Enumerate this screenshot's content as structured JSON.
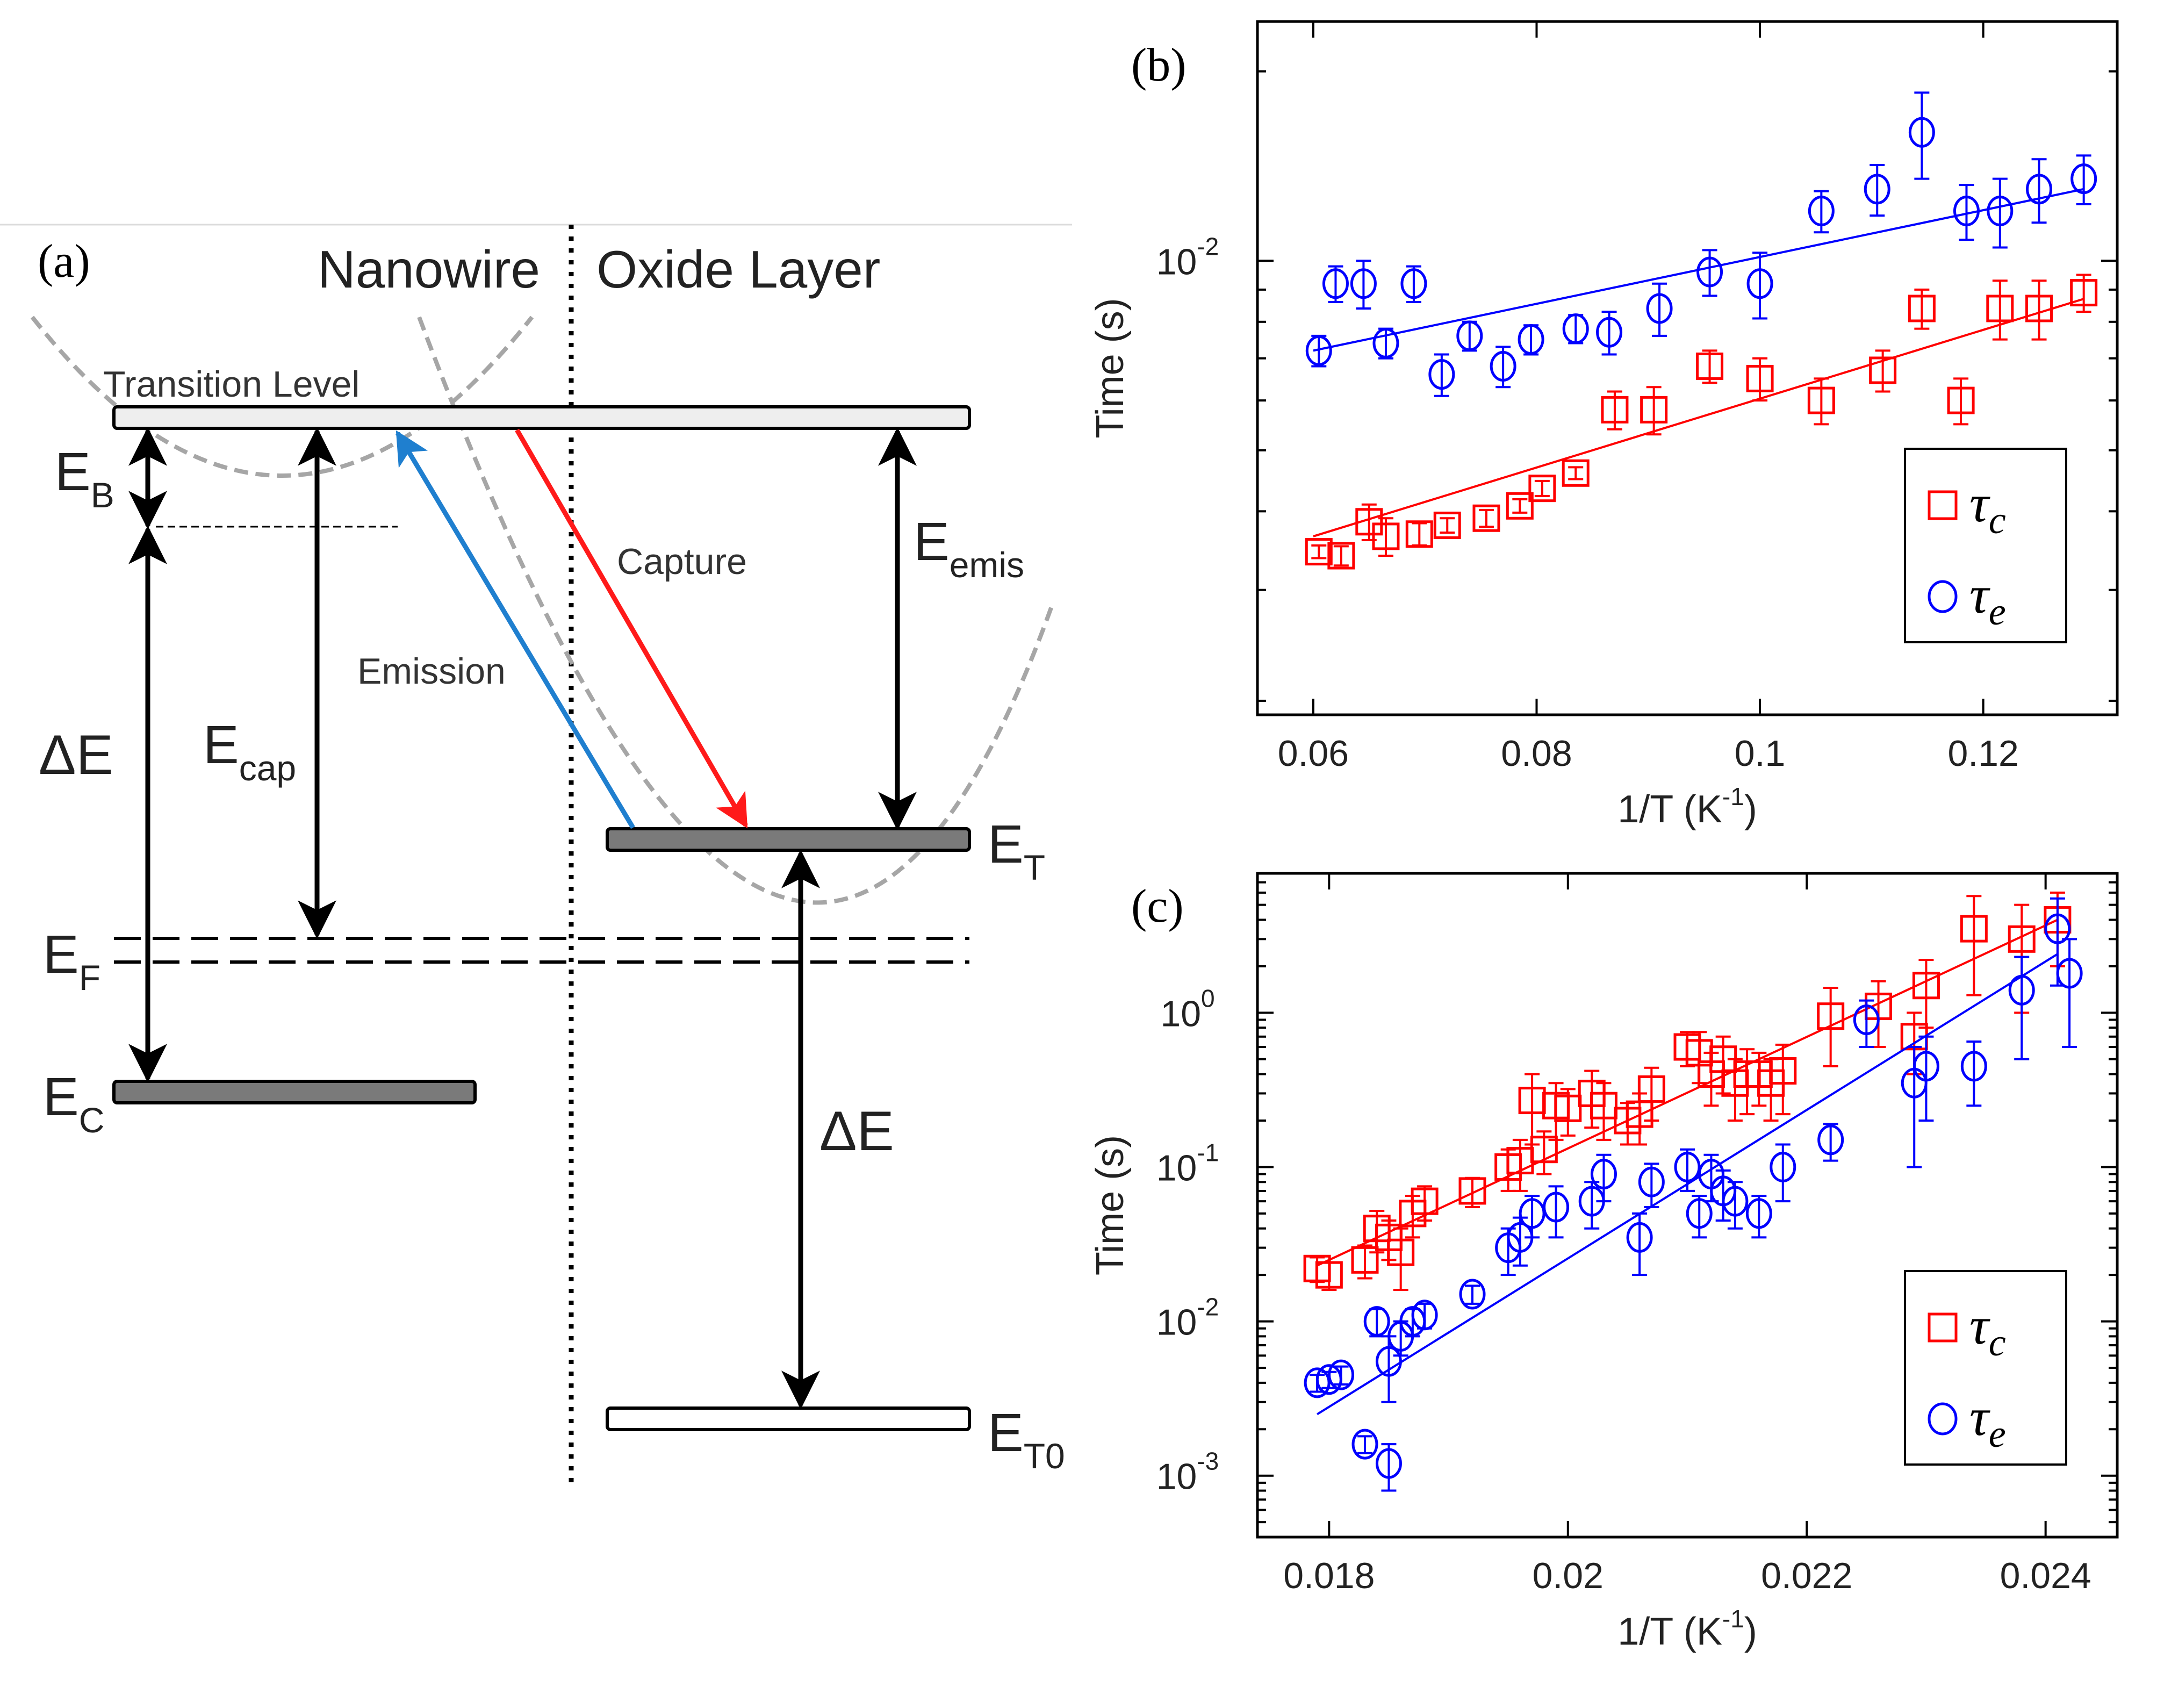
{
  "panel_a": {
    "label": "(a)",
    "region_left": "Nanowire",
    "region_right": "Oxide Layer",
    "transition_level": "Transition Level",
    "eb": {
      "main": "E",
      "sub": "B"
    },
    "delta_e": "ΔE",
    "ecap": {
      "main": "E",
      "sub": "cap"
    },
    "emission": "Emission",
    "capture": "Capture",
    "eemis": {
      "main": "E",
      "sub": "emis"
    },
    "et": {
      "main": "E",
      "sub": "T"
    },
    "ef": {
      "main": "E",
      "sub": "F"
    },
    "ec": {
      "main": "E",
      "sub": "C"
    },
    "delta_e_oxide": "ΔE",
    "et0": {
      "main": "E",
      "sub": "T0"
    },
    "colors": {
      "capture": "#ff1a1a",
      "emission": "#1f7fcf",
      "parabola": "#a0a0a0",
      "filled_level": "#7a7a7a",
      "light_level": "#eeeeee"
    }
  },
  "chart_data": [
    {
      "panel": "(b)",
      "type": "scatter",
      "xlabel": "1/T (K-1)",
      "ylabel": "Time (s)",
      "yscale": "log",
      "xlim": [
        0.055,
        0.132
      ],
      "ylim": [
        0.0019,
        0.024
      ],
      "xticks": [
        0.06,
        0.08,
        0.1,
        0.12
      ],
      "xtick_labels": [
        "0.06",
        "0.08",
        "0.1",
        "0.12"
      ],
      "ytick_labels": [
        {
          "value": 0.01,
          "base": "10",
          "exp": "-2"
        }
      ],
      "legend": "bottom-right",
      "series": [
        {
          "name": "τc",
          "marker": "square",
          "color": "#ff0000",
          "x": [
            0.0605,
            0.0625,
            0.065,
            0.0665,
            0.0695,
            0.072,
            0.0755,
            0.0785,
            0.0805,
            0.0835,
            0.087,
            0.0905,
            0.0955,
            0.1,
            0.1055,
            0.111,
            0.1145,
            0.118,
            0.1215,
            0.125,
            0.129
          ],
          "y": [
            0.00345,
            0.0034,
            0.00385,
            0.00365,
            0.00368,
            0.0038,
            0.0039,
            0.00408,
            0.00435,
            0.0046,
            0.0058,
            0.0058,
            0.0068,
            0.0065,
            0.006,
            0.0067,
            0.0084,
            0.006,
            0.0084,
            0.0084,
            0.0089
          ],
          "yerr": [
            8e-05,
            0.00012,
            0.00025,
            0.00025,
            0.00015,
            0.0001,
            0.00012,
            0.0001,
            0.00012,
            0.0001,
            0.0004,
            0.0005,
            0.0004,
            0.0005,
            0.0005,
            0.0005,
            0.0006,
            0.0005,
            0.0009,
            0.0009,
            0.0006
          ],
          "fit": {
            "x": [
              0.06,
              0.129
            ],
            "y": [
              0.00365,
              0.0087
            ]
          }
        },
        {
          "name": "τe",
          "marker": "circle",
          "color": "#0000ff",
          "x": [
            0.0605,
            0.062,
            0.0645,
            0.0665,
            0.069,
            0.0715,
            0.074,
            0.077,
            0.0795,
            0.0835,
            0.0865,
            0.091,
            0.0955,
            0.1,
            0.1055,
            0.1105,
            0.1145,
            0.1185,
            0.1215,
            0.125,
            0.129
          ],
          "y": [
            0.0072,
            0.0092,
            0.0092,
            0.0074,
            0.0092,
            0.0066,
            0.0076,
            0.0068,
            0.0075,
            0.0078,
            0.0077,
            0.0084,
            0.0096,
            0.0092,
            0.012,
            0.013,
            0.016,
            0.012,
            0.012,
            0.013,
            0.0135
          ],
          "yerr": [
            0.0004,
            0.0006,
            0.0008,
            0.0004,
            0.0006,
            0.0005,
            0.0004,
            0.0005,
            0.0004,
            0.0004,
            0.0006,
            0.0008,
            0.0008,
            0.0011,
            0.0009,
            0.0012,
            0.0025,
            0.0012,
            0.0015,
            0.0015,
            0.0012
          ],
          "fit": {
            "x": [
              0.06,
              0.129
            ],
            "y": [
              0.0072,
              0.013
            ]
          }
        }
      ]
    },
    {
      "panel": "(c)",
      "type": "scatter",
      "xlabel": "1/T (K-1)",
      "ylabel": "Time (s)",
      "yscale": "log",
      "xlim": [
        0.0174,
        0.0246
      ],
      "ylim": [
        0.0004,
        8
      ],
      "xticks": [
        0.018,
        0.02,
        0.022,
        0.024
      ],
      "xtick_labels": [
        "0.018",
        "0.02",
        "0.022",
        "0.024"
      ],
      "ytick_labels": [
        {
          "value": 1,
          "base": "10",
          "exp": "0"
        },
        {
          "value": 0.1,
          "base": "10",
          "exp": "-1"
        },
        {
          "value": 0.01,
          "base": "10",
          "exp": "-2"
        },
        {
          "value": 0.001,
          "base": "10",
          "exp": "-3"
        }
      ],
      "legend": "bottom-right",
      "series": [
        {
          "name": "τc",
          "marker": "square",
          "color": "#ff0000",
          "x": [
            0.0179,
            0.018,
            0.0183,
            0.0184,
            0.0185,
            0.0186,
            0.0187,
            0.0188,
            0.0192,
            0.0195,
            0.0196,
            0.0197,
            0.0198,
            0.0199,
            0.02,
            0.0202,
            0.0203,
            0.0205,
            0.0206,
            0.0207,
            0.021,
            0.0211,
            0.0212,
            0.0213,
            0.0214,
            0.0215,
            0.0216,
            0.0217,
            0.0218,
            0.0222,
            0.0226,
            0.0229,
            0.023,
            0.0234,
            0.0238,
            0.0241
          ],
          "y": [
            0.022,
            0.02,
            0.025,
            0.04,
            0.035,
            0.028,
            0.05,
            0.06,
            0.07,
            0.1,
            0.11,
            0.27,
            0.13,
            0.25,
            0.24,
            0.3,
            0.25,
            0.2,
            0.22,
            0.32,
            0.6,
            0.55,
            0.4,
            0.5,
            0.35,
            0.4,
            0.4,
            0.35,
            0.42,
            0.95,
            1.1,
            0.7,
            1.5,
            3.5,
            3,
            4
          ],
          "yerr": [
            0.004,
            0.004,
            0.006,
            0.012,
            0.01,
            0.012,
            0.015,
            0.015,
            0.015,
            0.03,
            0.04,
            0.13,
            0.04,
            0.1,
            0.08,
            0.12,
            0.1,
            0.06,
            0.08,
            0.12,
            0.15,
            0.2,
            0.15,
            0.2,
            0.15,
            0.18,
            0.15,
            0.15,
            0.2,
            0.5,
            0.5,
            0.3,
            0.7,
            2.2,
            2,
            2
          ],
          "fit": {
            "x": [
              0.0179,
              0.0241
            ],
            "y": [
              0.023,
              4
            ]
          }
        },
        {
          "name": "τe",
          "marker": "circle",
          "color": "#0000ff",
          "x": [
            0.0179,
            0.018,
            0.0181,
            0.0183,
            0.0184,
            0.0185,
            0.0185,
            0.0186,
            0.0187,
            0.0188,
            0.0192,
            0.0195,
            0.0196,
            0.0197,
            0.0199,
            0.0202,
            0.0203,
            0.0206,
            0.0207,
            0.021,
            0.0211,
            0.0212,
            0.0213,
            0.0214,
            0.0216,
            0.0218,
            0.0222,
            0.0225,
            0.0229,
            0.023,
            0.0234,
            0.0238,
            0.0241,
            0.0242
          ],
          "y": [
            0.004,
            0.0042,
            0.0045,
            0.0016,
            0.01,
            0.0012,
            0.0055,
            0.008,
            0.01,
            0.011,
            0.015,
            0.03,
            0.035,
            0.05,
            0.055,
            0.06,
            0.09,
            0.035,
            0.08,
            0.1,
            0.05,
            0.09,
            0.07,
            0.06,
            0.05,
            0.1,
            0.15,
            0.9,
            0.35,
            0.45,
            0.45,
            1.4,
            3.5,
            1.8
          ],
          "yerr": [
            0.0005,
            0.0005,
            0.0006,
            0.0002,
            0.002,
            0.0004,
            0.0025,
            0.002,
            0.002,
            0.002,
            0.002,
            0.01,
            0.012,
            0.015,
            0.02,
            0.02,
            0.03,
            0.015,
            0.025,
            0.03,
            0.015,
            0.03,
            0.025,
            0.02,
            0.015,
            0.04,
            0.04,
            0.3,
            0.25,
            0.25,
            0.2,
            0.9,
            2,
            1.2
          ],
          "fit": {
            "x": [
              0.0179,
              0.0241
            ],
            "y": [
              0.0025,
              2.4
            ]
          }
        }
      ]
    }
  ]
}
